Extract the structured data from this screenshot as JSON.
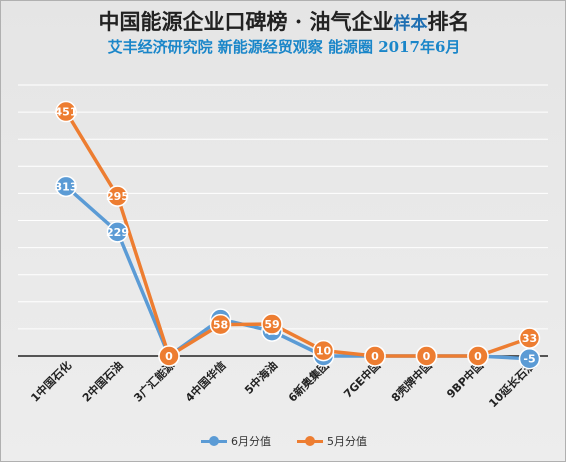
{
  "title": {
    "main": "中国能源企业口碑榜 · 油气企业",
    "accent": "样本",
    "tail": "排名"
  },
  "subtitle": "艾丰经济研究院 新能源经贸观察 能源圈 2017年6月",
  "colors": {
    "june": "#5b9bd5",
    "may": "#ed7d31",
    "grid": "#ffffff",
    "axis": "#222222"
  },
  "chart_data": {
    "type": "line",
    "categories": [
      "1中国石化",
      "2中国石油",
      "3广汇能源",
      "4中国华信",
      "5中海油",
      "6新奥集团",
      "7GE中国",
      "8壳牌中国",
      "9BP中国",
      "10延长石油"
    ],
    "series": [
      {
        "name": "6月分值",
        "values": [
          313,
          229,
          0,
          68,
          46,
          0,
          0,
          0,
          0,
          -5
        ],
        "labels": [
          "313",
          "229",
          "",
          "68",
          "46",
          "",
          "",
          "",
          "",
          "-5"
        ]
      },
      {
        "name": "5月分值",
        "values": [
          451,
          295,
          0,
          58,
          59,
          10,
          0,
          0,
          0,
          33
        ],
        "labels": [
          "451",
          "295",
          "0",
          "58",
          "59",
          "10",
          "0",
          "0",
          "0",
          "33"
        ]
      }
    ],
    "ylim": [
      -50,
      500
    ],
    "grid": true,
    "legend": "bottom"
  }
}
